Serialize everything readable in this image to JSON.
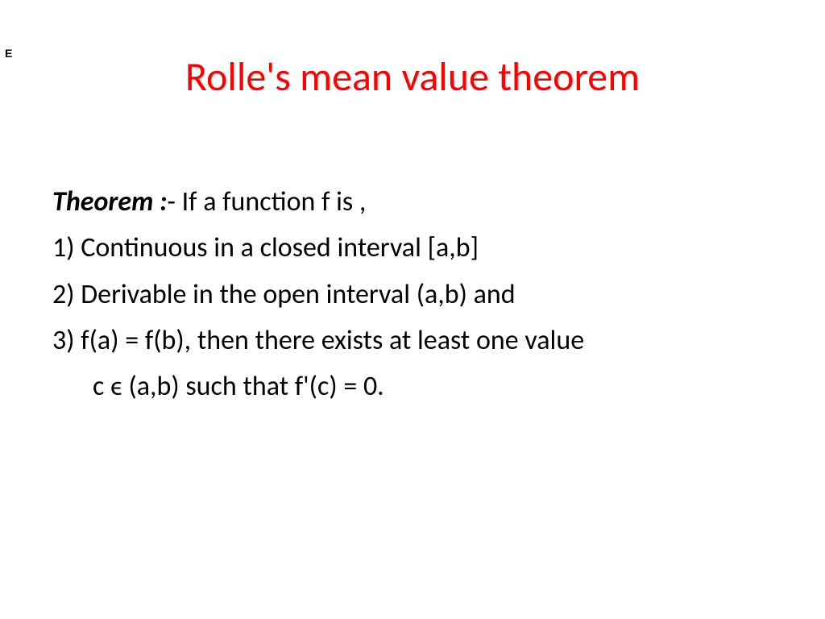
{
  "title": {
    "text": "Rolle's mean value theorem",
    "color": "#ff0000"
  },
  "corner_mark": "E",
  "content": {
    "theorem_label": "Theorem :",
    "intro_text": "- If a function f is ,",
    "point1_number": "1)",
    "point1_text": "  Continuous in a closed interval [a,b]",
    "point2": "2) Derivable in the open interval (a,b) and",
    "point3_line1": "3) f(a) = f(b), then there exists at least one value",
    "point3_line2": "c ϵ (a,b) such that f'(c) = 0.",
    "text_color": "#000000"
  },
  "background_color": "#ffffff",
  "title_fontsize": 50,
  "content_fontsize": 34
}
